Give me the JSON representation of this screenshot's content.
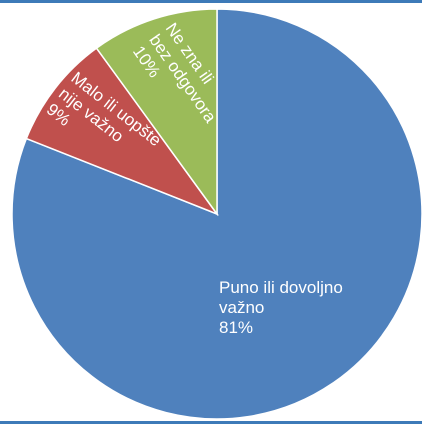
{
  "chart_data": {
    "type": "pie",
    "title": "",
    "start_angle_deg": 0,
    "direction": "clockwise",
    "slices": [
      {
        "label_lines": [
          "Puno ili dovoljno",
          "važno"
        ],
        "value": 81,
        "value_label": "81%",
        "color": "#4f81bd"
      },
      {
        "label_lines": [
          "Malo ili uopšte",
          "nije važno"
        ],
        "value": 9,
        "value_label": "9%",
        "color": "#c0504d"
      },
      {
        "label_lines": [
          "Ne zna ili",
          "bez odgovora"
        ],
        "value": 10,
        "value_label": "10%",
        "color": "#9bbb59"
      }
    ],
    "legend": "none",
    "frame_color": "#3d7ab8",
    "slice_border_color": "#ffffff"
  }
}
